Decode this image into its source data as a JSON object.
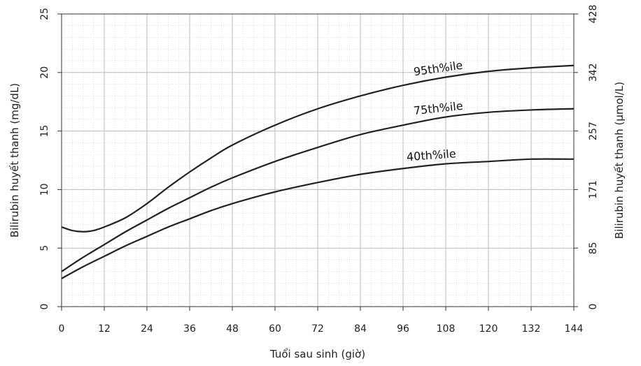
{
  "chart_data": {
    "type": "line",
    "xlabel": "Tuổi sau sinh (giờ)",
    "ylabel": "Bilirubin huyết thanh (mg/dL)",
    "y2label": "Bilirubin huyết thanh (µmol/L)",
    "xlim": [
      0,
      144
    ],
    "ylim": [
      0,
      25
    ],
    "x_ticks": [
      0,
      12,
      24,
      36,
      48,
      60,
      72,
      84,
      96,
      108,
      120,
      132,
      144
    ],
    "y_ticks": [
      0,
      5,
      10,
      15,
      20,
      25
    ],
    "y2_ticks": [
      {
        "label": "0",
        "at": 0
      },
      {
        "label": "85",
        "at": 5
      },
      {
        "label": "171",
        "at": 10
      },
      {
        "label": "257",
        "at": 15
      },
      {
        "label": "342",
        "at": 20
      },
      {
        "label": "428",
        "at": 25
      }
    ],
    "grid": true,
    "series": [
      {
        "name": "95th%ile",
        "x": [
          0,
          3,
          6,
          9,
          12,
          18,
          24,
          30,
          36,
          42,
          48,
          60,
          72,
          84,
          96,
          108,
          120,
          132,
          144
        ],
        "y": [
          6.8,
          6.5,
          6.4,
          6.5,
          6.8,
          7.6,
          8.8,
          10.2,
          11.5,
          12.7,
          13.8,
          15.5,
          16.9,
          18.0,
          18.9,
          19.6,
          20.1,
          20.4,
          20.6
        ]
      },
      {
        "name": "75th%ile",
        "x": [
          0,
          6,
          12,
          18,
          24,
          30,
          36,
          42,
          48,
          60,
          72,
          84,
          96,
          108,
          120,
          132,
          144
        ],
        "y": [
          3.0,
          4.2,
          5.3,
          6.4,
          7.4,
          8.4,
          9.3,
          10.2,
          11.0,
          12.4,
          13.6,
          14.7,
          15.5,
          16.2,
          16.6,
          16.8,
          16.9
        ]
      },
      {
        "name": "40th%ile",
        "x": [
          0,
          6,
          12,
          18,
          24,
          30,
          36,
          42,
          48,
          60,
          72,
          84,
          96,
          108,
          120,
          132,
          144
        ],
        "y": [
          2.4,
          3.4,
          4.3,
          5.2,
          6.0,
          6.8,
          7.5,
          8.2,
          8.8,
          9.8,
          10.6,
          11.3,
          11.8,
          12.2,
          12.4,
          12.6,
          12.6
        ]
      }
    ]
  }
}
